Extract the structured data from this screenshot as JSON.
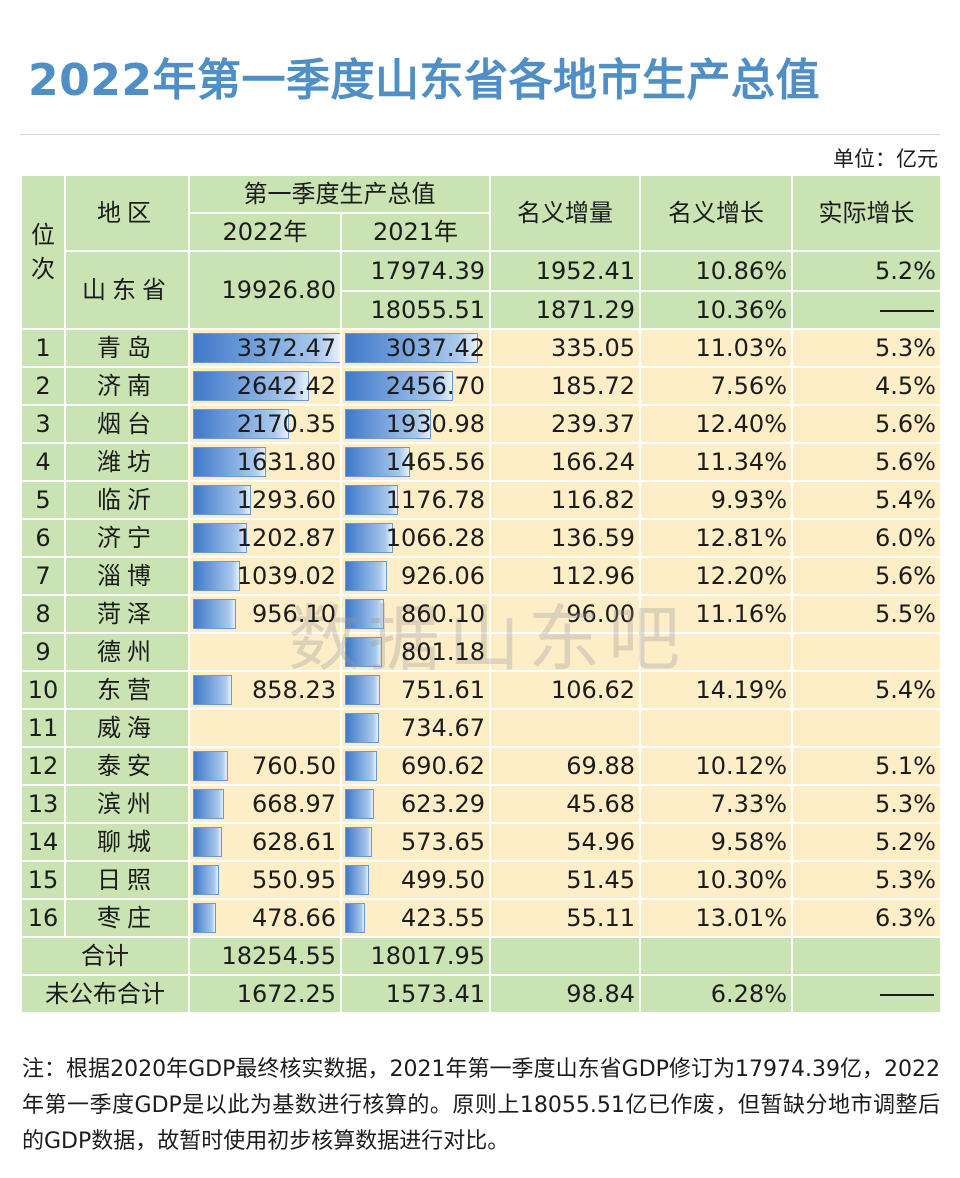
{
  "title": "2022年第一季度山东省各地市生产总值",
  "unit": "单位：亿元",
  "watermark": "数据山东吧",
  "note": "注：根据2020年GDP最终核实数据，2021年第一季度山东省GDP修订为17974.39亿，2022年第一季度GDP是以此为基数进行核算的。原则上18055.51亿已作废，但暂缺分地市调整后的GDP数据，故暂时使用初步核算数据进行对比。",
  "header": {
    "rank": "位次",
    "region": "地区",
    "gdp_group": "第一季度生产总值",
    "year2022": "2022年",
    "year2021": "2021年",
    "nominal_increase": "名义增量",
    "nominal_growth": "名义增长",
    "real_growth": "实际增长"
  },
  "province": {
    "name": "山东省",
    "gdp2022": "19926.80",
    "rows": [
      {
        "gdp2021": "17974.39",
        "increase": "1952.41",
        "nominal": "10.86%",
        "real": "5.2%"
      },
      {
        "gdp2021": "18055.51",
        "increase": "1871.29",
        "nominal": "10.36%",
        "real": ""
      }
    ]
  },
  "footer": {
    "total": {
      "label": "合计",
      "gdp2022": "18254.55",
      "gdp2021": "18017.95",
      "increase": "",
      "nominal": "",
      "real": ""
    },
    "unpublished": {
      "label": "未公布合计",
      "gdp2022": "1672.25",
      "gdp2021": "1573.41",
      "increase": "98.84",
      "nominal": "6.28%",
      "real": ""
    }
  },
  "chart_data": {
    "type": "table",
    "columns": [
      "位次",
      "地区",
      "2022年",
      "2021年",
      "名义增量",
      "名义增长",
      "实际增长"
    ],
    "bar_max": 3372.47,
    "rows": [
      {
        "rank": "1",
        "city": "青岛",
        "gdp2022": 3372.47,
        "gdp2021": 3037.42,
        "increase": "335.05",
        "nominal": "11.03%",
        "real": "5.3%"
      },
      {
        "rank": "2",
        "city": "济南",
        "gdp2022": 2642.42,
        "gdp2021": 2456.7,
        "increase": "185.72",
        "nominal": "7.56%",
        "real": "4.5%"
      },
      {
        "rank": "3",
        "city": "烟台",
        "gdp2022": 2170.35,
        "gdp2021": 1930.98,
        "increase": "239.37",
        "nominal": "12.40%",
        "real": "5.6%"
      },
      {
        "rank": "4",
        "city": "潍坊",
        "gdp2022": 1631.8,
        "gdp2021": 1465.56,
        "increase": "166.24",
        "nominal": "11.34%",
        "real": "5.6%"
      },
      {
        "rank": "5",
        "city": "临沂",
        "gdp2022": 1293.6,
        "gdp2021": 1176.78,
        "increase": "116.82",
        "nominal": "9.93%",
        "real": "5.4%"
      },
      {
        "rank": "6",
        "city": "济宁",
        "gdp2022": 1202.87,
        "gdp2021": 1066.28,
        "increase": "136.59",
        "nominal": "12.81%",
        "real": "6.0%"
      },
      {
        "rank": "7",
        "city": "淄博",
        "gdp2022": 1039.02,
        "gdp2021": 926.06,
        "increase": "112.96",
        "nominal": "12.20%",
        "real": "5.6%"
      },
      {
        "rank": "8",
        "city": "菏泽",
        "gdp2022": 956.1,
        "gdp2021": 860.1,
        "increase": "96.00",
        "nominal": "11.16%",
        "real": "5.5%"
      },
      {
        "rank": "9",
        "city": "德州",
        "gdp2022": null,
        "gdp2021": 801.18,
        "increase": "",
        "nominal": "",
        "real": ""
      },
      {
        "rank": "10",
        "city": "东营",
        "gdp2022": 858.23,
        "gdp2021": 751.61,
        "increase": "106.62",
        "nominal": "14.19%",
        "real": "5.4%"
      },
      {
        "rank": "11",
        "city": "威海",
        "gdp2022": null,
        "gdp2021": 734.67,
        "increase": "",
        "nominal": "",
        "real": ""
      },
      {
        "rank": "12",
        "city": "泰安",
        "gdp2022": 760.5,
        "gdp2021": 690.62,
        "increase": "69.88",
        "nominal": "10.12%",
        "real": "5.1%"
      },
      {
        "rank": "13",
        "city": "滨州",
        "gdp2022": 668.97,
        "gdp2021": 623.29,
        "increase": "45.68",
        "nominal": "7.33%",
        "real": "5.3%"
      },
      {
        "rank": "14",
        "city": "聊城",
        "gdp2022": 628.61,
        "gdp2021": 573.65,
        "increase": "54.96",
        "nominal": "9.58%",
        "real": "5.2%"
      },
      {
        "rank": "15",
        "city": "日照",
        "gdp2022": 550.95,
        "gdp2021": 499.5,
        "increase": "51.45",
        "nominal": "10.30%",
        "real": "5.3%"
      },
      {
        "rank": "16",
        "city": "枣庄",
        "gdp2022": 478.66,
        "gdp2021": 423.55,
        "increase": "55.11",
        "nominal": "13.01%",
        "real": "6.3%"
      }
    ]
  }
}
